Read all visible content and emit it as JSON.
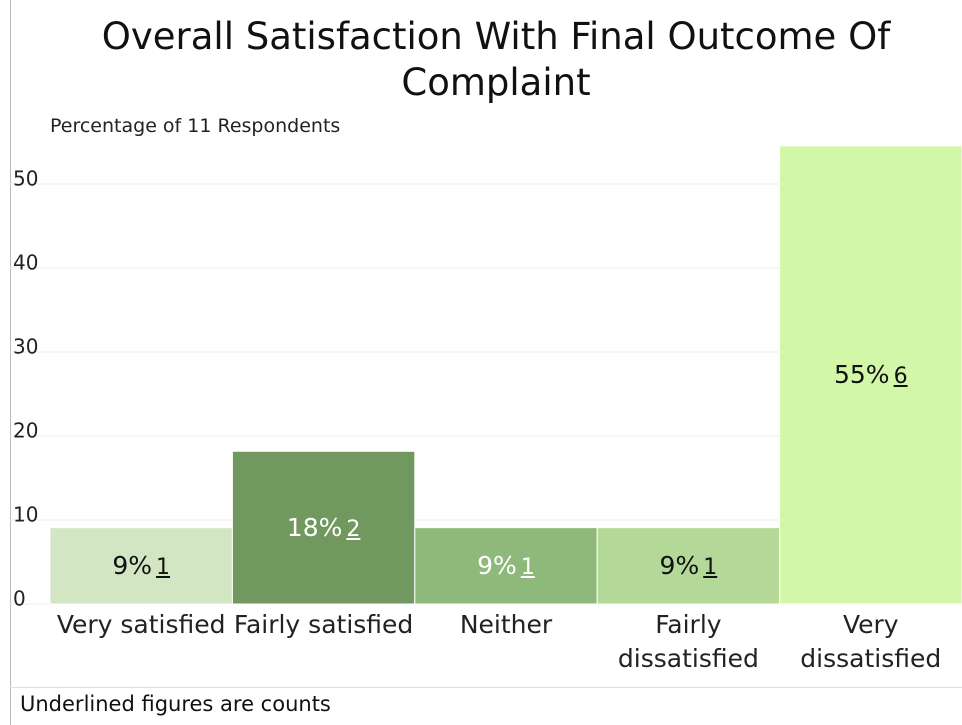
{
  "chart_data": {
    "type": "bar",
    "title": "Overall Satisfaction With Final Outcome Of Complaint",
    "subtitle": "Percentage of 11 Respondents",
    "categories": [
      "Very satisfied",
      "Fairly satisfied",
      "Neither",
      "Fairly dissatisfied",
      "Very dissatisfied"
    ],
    "values": [
      9.09,
      18.18,
      9.09,
      9.09,
      54.55
    ],
    "value_labels": [
      "9%",
      "18%",
      "9%",
      "9%",
      "55%"
    ],
    "counts": [
      1,
      2,
      1,
      1,
      6
    ],
    "colors": [
      "#d3e6c4",
      "#71995f",
      "#8fb97a",
      "#b4d898",
      "#d3f7a8"
    ],
    "ylim": [
      0,
      55
    ],
    "yticks": [
      0,
      10,
      20,
      30,
      40,
      50
    ],
    "grid": true,
    "footnote": "Underlined figures are counts"
  }
}
